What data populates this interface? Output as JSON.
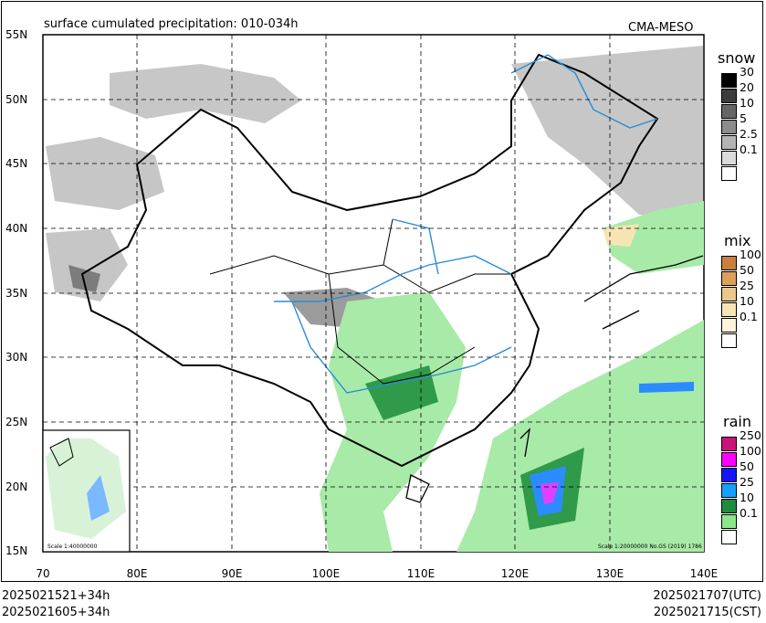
{
  "title": "surface cumulated precipitation: 010-034h",
  "org": "CMA-MESO",
  "lat_labels": [
    "55N",
    "50N",
    "45N",
    "40N",
    "35N",
    "30N",
    "25N",
    "20N",
    "15N"
  ],
  "lon_labels": [
    "70",
    "80E",
    "90E",
    "100E",
    "110E",
    "120E",
    "130E",
    "140E"
  ],
  "scale_main": "Scale 1:20000000 No.GS (2019) 1786",
  "scale_inset": "Scale 1:40000000",
  "footer": {
    "left_1": "2025021521+34h",
    "left_2": "2025021605+34h",
    "right_1": "2025021707(UTC)",
    "right_2": "2025021715(CST)"
  },
  "legends": {
    "snow": {
      "title": "snow",
      "labels": [
        "30",
        "20",
        "10",
        "5",
        "2.5",
        "0.1"
      ],
      "colors": [
        "#000000",
        "#3c3c3c",
        "#666666",
        "#8c8c8c",
        "#b4b4b4",
        "#dcdcdc"
      ]
    },
    "mix": {
      "title": "mix",
      "labels": [
        "100",
        "50",
        "25",
        "10",
        "0.1"
      ],
      "colors": [
        "#c8803c",
        "#dca05a",
        "#ecc88c",
        "#f6e4b4",
        "#fbf3da"
      ]
    },
    "rain": {
      "title": "rain",
      "labels": [
        "250",
        "100",
        "50",
        "25",
        "10",
        "0.1"
      ],
      "colors": [
        "#c81478",
        "#ff00ff",
        "#1414ff",
        "#14a0ff",
        "#1e8c3c",
        "#8ce68c"
      ]
    }
  }
}
